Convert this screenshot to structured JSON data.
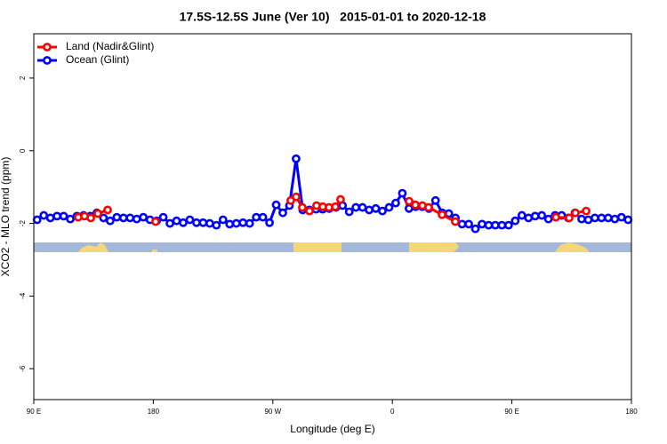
{
  "chart_data": {
    "type": "line",
    "title": "17.5S-12.5S June (Ver 10)   2015-01-01 to 2020-12-18",
    "xlabel": "Longitude (deg E)",
    "ylabel": "XCO2 - MLO trend (ppm)",
    "xlim": [
      90,
      540
    ],
    "xticks": [
      {
        "value": 90,
        "label": "90 E"
      },
      180,
      {
        "value": 270,
        "label": "90 W"
      },
      {
        "value": 360,
        "label": "0"
      },
      {
        "value": 450,
        "label": "90 E"
      },
      {
        "value": 540,
        "label": "180"
      }
    ],
    "ylim": [
      -6.85,
      3.22
    ],
    "yticks": [
      2,
      0,
      -2,
      -4,
      -6
    ],
    "legend": "top-left",
    "series": [
      {
        "name": "Land (Nadir&Glint)",
        "color": "#ff0000",
        "x": [
          123.5,
          128.2,
          132.9,
          138.2,
          145.6,
          null,
          181.7,
          null,
          283.5,
          287.5,
          292.2,
          297.6,
          302.9,
          307.6,
          312.3,
          317.0,
          321.0,
          null,
          372.6,
          377.3,
          382.6,
          387.3,
          397.4,
          407.4,
          null,
          483.1,
          493.1,
          497.8,
          505.9
        ],
        "values": [
          -1.83,
          -1.8,
          -1.85,
          -1.73,
          -1.63,
          null,
          -1.95,
          null,
          -1.37,
          -1.27,
          -1.56,
          -1.66,
          -1.51,
          -1.54,
          -1.56,
          -1.54,
          -1.34,
          null,
          -1.39,
          -1.49,
          -1.51,
          -1.56,
          -1.76,
          -1.95,
          null,
          -1.83,
          -1.85,
          -1.71,
          -1.66
        ]
      },
      {
        "name": "Ocean (Glint)",
        "color": "#0000ff",
        "x": [
          92.5,
          97.5,
          102.5,
          107.5,
          112.5,
          117.5,
          122.5,
          127.5,
          132.5,
          137.5,
          142.5,
          147.5,
          152.5,
          157.5,
          162.5,
          167.5,
          172.5,
          177.5,
          182.5,
          187.5,
          192.5,
          197.5,
          202.5,
          207.5,
          212.5,
          217.5,
          222.5,
          227.5,
          232.5,
          237.5,
          242.5,
          247.5,
          252.5,
          257.5,
          262.5,
          267.5,
          272.5,
          277.5,
          282.5,
          287.5,
          292.5,
          297.5,
          302.5,
          307.5,
          312.5,
          317.5,
          322.5,
          327.5,
          332.5,
          337.5,
          342.5,
          347.5,
          352.5,
          357.5,
          362.5,
          367.5,
          372.5,
          377.5,
          382.5,
          387.5,
          392.5,
          397.5,
          402.5,
          407.5,
          412.5,
          417.5,
          422.5,
          427.5,
          432.5,
          437.5,
          442.5,
          447.5,
          452.5,
          457.5,
          462.5,
          467.5,
          472.5,
          477.5,
          482.5,
          487.5,
          492.5,
          497.5,
          502.5,
          507.5,
          512.5,
          517.5,
          522.5,
          527.5,
          532.5,
          537.5
        ],
        "values": [
          -1.9,
          -1.78,
          -1.85,
          -1.8,
          -1.8,
          -1.88,
          -1.8,
          -1.78,
          -1.8,
          -1.71,
          -1.85,
          -1.93,
          -1.83,
          -1.85,
          -1.85,
          -1.88,
          -1.83,
          -1.9,
          -1.93,
          -1.83,
          -2.0,
          -1.93,
          -1.98,
          -1.9,
          -1.98,
          -1.98,
          -2.0,
          -2.05,
          -1.9,
          -2.02,
          -2.0,
          -1.98,
          -2.0,
          -1.83,
          -1.83,
          -1.98,
          -1.49,
          -1.71,
          -1.51,
          -0.22,
          -1.63,
          -1.63,
          -1.61,
          -1.61,
          -1.59,
          -1.56,
          -1.51,
          -1.68,
          -1.56,
          -1.56,
          -1.63,
          -1.59,
          -1.66,
          -1.56,
          -1.44,
          -1.17,
          -1.59,
          -1.54,
          -1.54,
          -1.59,
          -1.37,
          -1.71,
          -1.73,
          -1.85,
          -2.02,
          -2.02,
          -2.15,
          -2.02,
          -2.05,
          -2.05,
          -2.05,
          -2.05,
          -1.93,
          -1.78,
          -1.85,
          -1.8,
          -1.78,
          -1.88,
          -1.78,
          -1.78,
          -1.85,
          -1.71,
          -1.88,
          -1.9,
          -1.85,
          -1.85,
          -1.85,
          -1.88,
          -1.83,
          -1.9
        ]
      }
    ]
  }
}
